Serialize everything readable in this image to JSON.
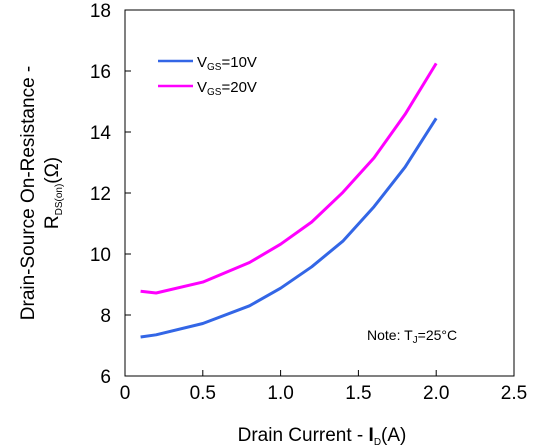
{
  "chart_data": {
    "type": "line",
    "title": "",
    "xlabel": {
      "prefix": "Drain Current  - ",
      "symbol": "I",
      "sub": "D",
      "suffix": "(A)"
    },
    "ylabel": {
      "line1": "Drain-Source On-Resistance -",
      "symbol": "R",
      "sub": "DS(on)",
      "suffix": "(Ω)"
    },
    "xlim": [
      0,
      2.5
    ],
    "ylim": [
      6,
      18
    ],
    "xticks": [
      0,
      0.5,
      1.0,
      1.5,
      2.0,
      2.5
    ],
    "xtick_labels": [
      "0",
      "0.5",
      "1.0",
      "1.5",
      "2.0",
      "2.5"
    ],
    "yticks": [
      6,
      8,
      10,
      12,
      14,
      16,
      18
    ],
    "ytick_labels": [
      "6",
      "8",
      "10",
      "12",
      "14",
      "16",
      "18"
    ],
    "grid": false,
    "legend_position": "top-left",
    "series": [
      {
        "name": {
          "symbol": "V",
          "sub": "GS",
          "suffix": "=10V"
        },
        "color": "#3366e6",
        "x": [
          0.1,
          0.2,
          0.5,
          0.8,
          1.0,
          1.2,
          1.4,
          1.6,
          1.8,
          2.0
        ],
        "y": [
          7.28,
          7.35,
          7.72,
          8.3,
          8.88,
          9.58,
          10.42,
          11.55,
          12.85,
          14.45
        ]
      },
      {
        "name": {
          "symbol": "V",
          "sub": "GS",
          "suffix": "=20V"
        },
        "color": "#ff00ff",
        "x": [
          0.1,
          0.2,
          0.5,
          0.8,
          1.0,
          1.2,
          1.4,
          1.6,
          1.8,
          2.0
        ],
        "y": [
          8.78,
          8.72,
          9.08,
          9.72,
          10.32,
          11.05,
          12.02,
          13.15,
          14.58,
          16.25
        ]
      }
    ],
    "annotation": {
      "prefix": "Note: T",
      "sub": "J",
      "suffix": "=25°C"
    }
  }
}
